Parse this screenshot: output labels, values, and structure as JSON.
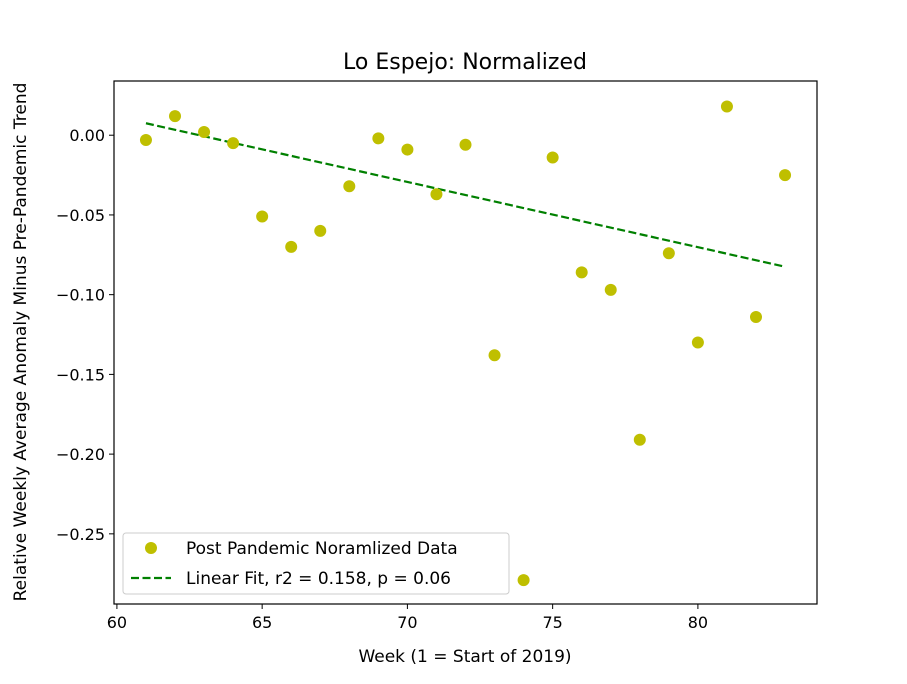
{
  "chart_data": {
    "type": "scatter",
    "title": "Lo Espejo: Normalized",
    "xlabel": "Week (1 = Start of 2019)",
    "ylabel": "Relative Weekly Average Anomaly Minus Pre-Pandemic Trend",
    "xlim": [
      59.9,
      84.1
    ],
    "ylim": [
      -0.294,
      0.034
    ],
    "xticks": [
      60,
      65,
      70,
      75,
      80
    ],
    "xtick_labels": [
      "60",
      "65",
      "70",
      "75",
      "80"
    ],
    "yticks": [
      0.0,
      -0.05,
      -0.1,
      -0.15,
      -0.2,
      -0.25
    ],
    "ytick_labels": [
      "0.00",
      "−0.05",
      "−0.10",
      "−0.15",
      "−0.20",
      "−0.25"
    ],
    "grid": false,
    "legend_position": "lower-left",
    "series": [
      {
        "name": "Post Pandemic Noramlized Data",
        "kind": "scatter",
        "color": "#bfbf00",
        "x": [
          61,
          62,
          63,
          64,
          65,
          66,
          67,
          68,
          69,
          70,
          71,
          72,
          73,
          74,
          75,
          76,
          77,
          78,
          79,
          80,
          81,
          82,
          83
        ],
        "y": [
          -0.003,
          0.012,
          0.002,
          -0.005,
          -0.051,
          -0.07,
          -0.06,
          -0.032,
          -0.002,
          -0.009,
          -0.037,
          -0.006,
          -0.138,
          -0.279,
          -0.014,
          -0.086,
          -0.097,
          -0.191,
          -0.074,
          -0.13,
          0.018,
          -0.114,
          -0.025
        ]
      },
      {
        "name": "Linear Fit, r2 = 0.158, p = 0.06",
        "kind": "line",
        "style": "dashed",
        "color": "#008000",
        "x": [
          61,
          83
        ],
        "y": [
          0.0075,
          -0.0825
        ]
      }
    ]
  }
}
